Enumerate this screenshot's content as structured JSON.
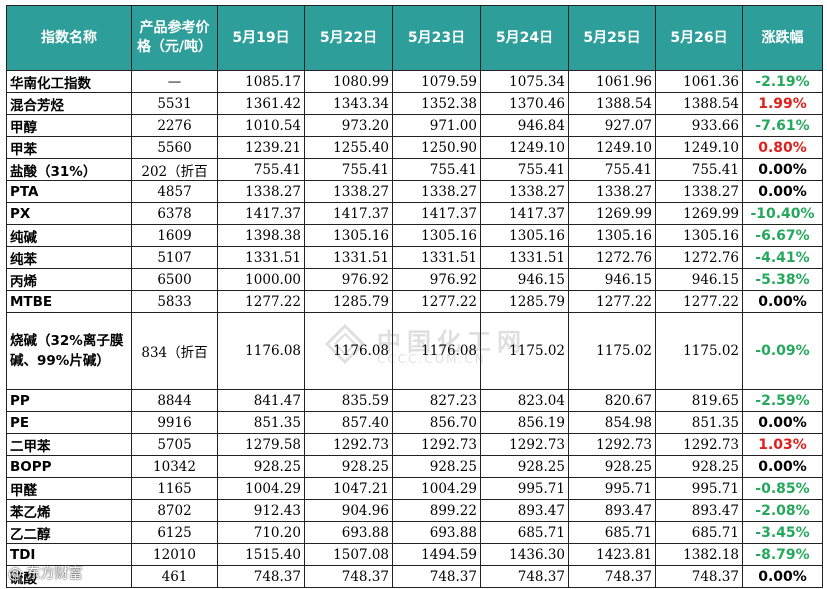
{
  "headers": [
    "指数名称",
    "产品参考价格（元/吨）",
    "5月19日",
    "5月22日",
    "5月23日",
    "5月24日",
    "5月25日",
    "5月26日",
    "涨跌幅"
  ],
  "colors": {
    "header_bg": "#2e9e9a",
    "up": "#e0201c",
    "down": "#25a85c"
  },
  "rows": [
    {
      "name": "华南化工指数",
      "ref": "—",
      "v": [
        "1085.17",
        "1080.99",
        "1079.59",
        "1075.34",
        "1061.96",
        "1061.36"
      ],
      "chg": "-2.19%",
      "dir": "down"
    },
    {
      "name": "混合芳烃",
      "ref": "5531",
      "v": [
        "1361.42",
        "1343.34",
        "1352.38",
        "1370.46",
        "1388.54",
        "1388.54"
      ],
      "chg": "1.99%",
      "dir": "up"
    },
    {
      "name": "甲醇",
      "ref": "2276",
      "v": [
        "1010.54",
        "973.20",
        "971.00",
        "946.84",
        "927.07",
        "933.66"
      ],
      "chg": "-7.61%",
      "dir": "down"
    },
    {
      "name": "甲苯",
      "ref": "5560",
      "v": [
        "1239.21",
        "1255.40",
        "1250.90",
        "1249.10",
        "1249.10",
        "1249.10"
      ],
      "chg": "0.80%",
      "dir": "up"
    },
    {
      "name": "盐酸（31%）",
      "ref": "202（折百",
      "v": [
        "755.41",
        "755.41",
        "755.41",
        "755.41",
        "755.41",
        "755.41"
      ],
      "chg": "0.00%",
      "dir": "flat"
    },
    {
      "name": "PTA",
      "ref": "4857",
      "v": [
        "1338.27",
        "1338.27",
        "1338.27",
        "1338.27",
        "1338.27",
        "1338.27"
      ],
      "chg": "0.00%",
      "dir": "flat"
    },
    {
      "name": "PX",
      "ref": "6378",
      "v": [
        "1417.37",
        "1417.37",
        "1417.37",
        "1417.37",
        "1269.99",
        "1269.99"
      ],
      "chg": "-10.40%",
      "dir": "down"
    },
    {
      "name": "纯碱",
      "ref": "1609",
      "v": [
        "1398.38",
        "1305.16",
        "1305.16",
        "1305.16",
        "1305.16",
        "1305.16"
      ],
      "chg": "-6.67%",
      "dir": "down"
    },
    {
      "name": "纯苯",
      "ref": "5107",
      "v": [
        "1331.51",
        "1331.51",
        "1331.51",
        "1331.51",
        "1272.76",
        "1272.76"
      ],
      "chg": "-4.41%",
      "dir": "down"
    },
    {
      "name": "丙烯",
      "ref": "6500",
      "v": [
        "1000.00",
        "976.92",
        "976.92",
        "946.15",
        "946.15",
        "946.15"
      ],
      "chg": "-5.38%",
      "dir": "down"
    },
    {
      "name": "MTBE",
      "ref": "5833",
      "v": [
        "1277.22",
        "1285.79",
        "1277.22",
        "1285.79",
        "1277.22",
        "1277.22"
      ],
      "chg": "0.00%",
      "dir": "flat"
    },
    {
      "name": "烧碱（32%离子膜碱、99%片碱）",
      "ref": "834（折百",
      "v": [
        "1176.08",
        "1176.08",
        "1176.08",
        "1175.02",
        "1175.02",
        "1175.02"
      ],
      "chg": "-0.09%",
      "dir": "down",
      "tall": true
    },
    {
      "name": "PP",
      "ref": "8844",
      "v": [
        "841.47",
        "835.59",
        "827.23",
        "823.04",
        "820.67",
        "819.65"
      ],
      "chg": "-2.59%",
      "dir": "down"
    },
    {
      "name": "PE",
      "ref": "9916",
      "v": [
        "851.35",
        "857.40",
        "856.70",
        "856.19",
        "854.98",
        "851.35"
      ],
      "chg": "0.00%",
      "dir": "flat"
    },
    {
      "name": "二甲苯",
      "ref": "5705",
      "v": [
        "1279.58",
        "1292.73",
        "1292.73",
        "1292.73",
        "1292.73",
        "1292.73"
      ],
      "chg": "1.03%",
      "dir": "up"
    },
    {
      "name": "BOPP",
      "ref": "10342",
      "v": [
        "928.25",
        "928.25",
        "928.25",
        "928.25",
        "928.25",
        "928.25"
      ],
      "chg": "0.00%",
      "dir": "flat"
    },
    {
      "name": "甲醛",
      "ref": "1165",
      "v": [
        "1004.29",
        "1047.21",
        "1004.29",
        "995.71",
        "995.71",
        "995.71"
      ],
      "chg": "-0.85%",
      "dir": "down"
    },
    {
      "name": "苯乙烯",
      "ref": "8702",
      "v": [
        "912.43",
        "904.96",
        "899.22",
        "893.47",
        "893.47",
        "893.47"
      ],
      "chg": "-2.08%",
      "dir": "down"
    },
    {
      "name": "乙二醇",
      "ref": "6125",
      "v": [
        "710.20",
        "693.88",
        "693.88",
        "685.71",
        "685.71",
        "685.71"
      ],
      "chg": "-3.45%",
      "dir": "down"
    },
    {
      "name": "TDI",
      "ref": "12010",
      "v": [
        "1515.40",
        "1507.08",
        "1494.59",
        "1436.30",
        "1423.81",
        "1382.18"
      ],
      "chg": "-8.79%",
      "dir": "down"
    },
    {
      "name": "硫酸",
      "ref": "461",
      "v": [
        "748.37",
        "748.37",
        "748.37",
        "748.37",
        "748.37",
        "748.37"
      ],
      "chg": "0.00%",
      "dir": "flat"
    }
  ],
  "watermark": {
    "title": "中国化工网",
    "url": "CCCC.COM.CN"
  },
  "source_mark": "@ 东方财富",
  "icons": {
    "watermark_logo": "diamond-logo-icon"
  }
}
